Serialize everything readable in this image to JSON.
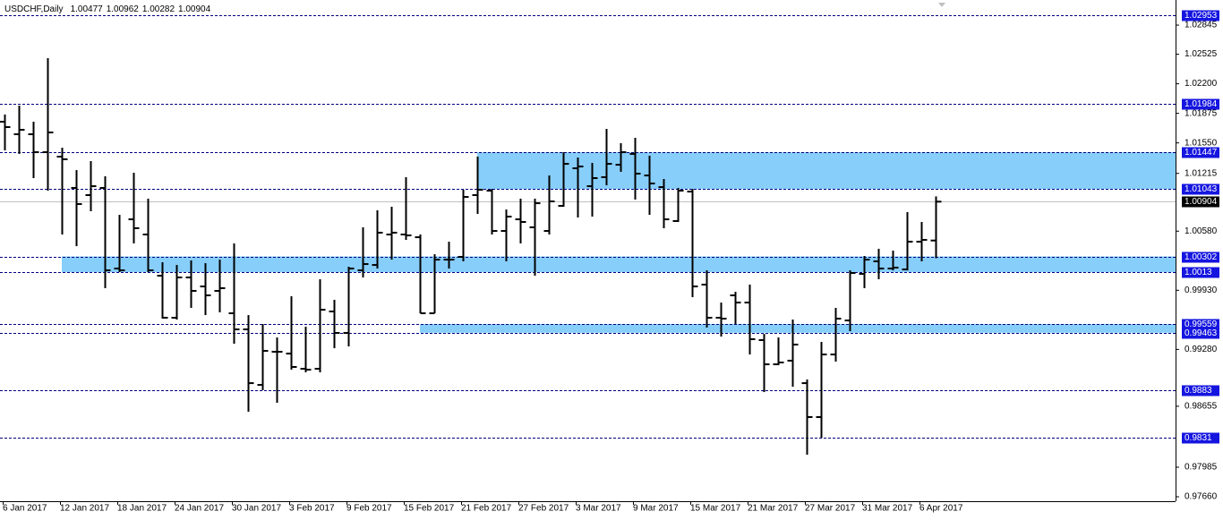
{
  "chart_data": {
    "type": "ohlc",
    "title": "USDCHF,Daily",
    "color": "#000000",
    "zone_color": "#87cefa",
    "level_color": "#1515e0",
    "level_line_color": "#000080",
    "current_color": "#000000",
    "categories": [
      "6 Jan 2017",
      null,
      null,
      null,
      "12 Jan 2017",
      null,
      null,
      null,
      "18 Jan 2017",
      null,
      null,
      null,
      "24 Jan 2017",
      null,
      null,
      null,
      "30 Jan 2017",
      null,
      null,
      null,
      "3 Feb 2017",
      null,
      null,
      null,
      "9 Feb 2017",
      null,
      null,
      null,
      "15 Feb 2017",
      null,
      null,
      null,
      "21 Feb 2017",
      null,
      null,
      null,
      "27 Feb 2017",
      null,
      null,
      null,
      "3 Mar 2017",
      null,
      null,
      null,
      "9 Mar 2017",
      null,
      null,
      null,
      "15 Mar 2017",
      null,
      null,
      null,
      "21 Mar 2017",
      null,
      null,
      null,
      "27 Mar 2017",
      null,
      null,
      null,
      "31 Mar 2017",
      null,
      null,
      null,
      "6 Apr 2017",
      null
    ],
    "open": [
      1.01783,
      1.01645,
      1.01645,
      1.01448,
      1.01399,
      1.01055,
      1.00976,
      1.01055,
      1.00169,
      1.0071,
      1.00543,
      1.0009,
      0.99628,
      1.00071,
      0.99972,
      0.99923,
      0.99677,
      0.995,
      0.9889,
      0.99254,
      0.99234,
      0.99067,
      0.99067,
      0.99697,
      0.99461,
      1.00149,
      1.00208,
      1.00543,
      1.00543,
      1.00513,
      0.99677,
      1.00267,
      1.00297,
      1.00976,
      1.01025,
      1.00582,
      1.0071,
      1.00622,
      1.00582,
      1.00858,
      1.01271,
      1.01074,
      1.01173,
      1.0131,
      1.01429,
      1.01192,
      1.01064,
      1.00691,
      1.01015,
      0.99992,
      0.99628,
      0.99874,
      0.99795,
      0.99382,
      0.99116,
      0.99156,
      0.98909,
      0.98536,
      0.99224,
      0.99598,
      1.0011,
      1.00248,
      1.00169,
      1.00159,
      1.00464,
      1.00477
    ],
    "high": [
      1.01862,
      1.0196,
      1.01783,
      1.02481,
      1.01497,
      1.01251,
      1.0135,
      1.01183,
      1.00759,
      1.01222,
      1.00937,
      1.00238,
      1.00208,
      1.00258,
      1.00228,
      1.00267,
      1.00445,
      0.99657,
      0.99559,
      0.99411,
      0.99864,
      0.99529,
      1.00051,
      0.99825,
      1.00189,
      1.00622,
      1.00809,
      1.00848,
      1.01173,
      1.00543,
      1.00326,
      1.00464,
      1.01035,
      1.01399,
      1.01045,
      1.00818,
      1.00937,
      1.00937,
      1.01192,
      1.01448,
      1.01389,
      1.0133,
      1.01704,
      1.01547,
      1.01606,
      1.01409,
      1.01153,
      1.01055,
      1.01045,
      1.00149,
      0.99795,
      0.99913,
      0.99992,
      0.99451,
      0.99411,
      0.99608,
      0.98949,
      0.99362,
      0.99736,
      1.00149,
      1.00307,
      1.00386,
      1.00366,
      1.00789,
      1.00681,
      1.00962
    ],
    "low": [
      1.01468,
      1.01429,
      1.01163,
      1.01025,
      1.00543,
      1.00415,
      1.00799,
      0.99953,
      1.0013,
      1.00445,
      1.0013,
      0.99618,
      0.99608,
      0.99736,
      0.99657,
      0.99687,
      0.99342,
      0.98595,
      0.98831,
      0.98693,
      0.99057,
      0.99028,
      0.99028,
      0.99293,
      0.99313,
      1.00071,
      1.00169,
      1.00267,
      1.00484,
      0.99677,
      0.99677,
      1.00169,
      1.00248,
      1.00769,
      1.00543,
      1.00248,
      1.00445,
      1.0009,
      1.00543,
      1.00848,
      1.0073,
      1.0074,
      1.01084,
      1.01232,
      1.00927,
      1.00759,
      1.00612,
      1.00681,
      0.99854,
      0.9952,
      0.99421,
      0.99559,
      0.99224,
      0.98811,
      0.99106,
      0.9887,
      0.98122,
      0.98309,
      0.99146,
      0.9948,
      0.99953,
      1.00051,
      1.00149,
      1.00149,
      1.00248,
      1.00282
    ],
    "close": [
      1.01724,
      1.01694,
      1.01448,
      1.01665,
      1.0137,
      1.00878,
      1.01074,
      1.00149,
      1.00149,
      1.00612,
      1.00149,
      0.99628,
      1.00071,
      0.99923,
      0.99874,
      0.99953,
      0.995,
      0.98909,
      0.99264,
      0.99254,
      0.99087,
      0.99057,
      0.99716,
      0.99461,
      1.00169,
      1.00218,
      1.00563,
      1.00563,
      1.00533,
      0.99677,
      1.00267,
      1.00267,
      1.00956,
      1.01035,
      1.00582,
      1.0074,
      1.00681,
      1.00887,
      1.00907,
      1.0132,
      1.01291,
      1.01163,
      1.0132,
      1.01448,
      1.01212,
      1.01104,
      1.0071,
      1.01025,
      0.99972,
      0.99628,
      0.99618,
      0.99795,
      0.99392,
      0.99116,
      0.99136,
      0.99333,
      0.98536,
      0.99224,
      0.99618,
      1.0012,
      1.00267,
      1.00169,
      1.00179,
      1.00464,
      1.00484,
      1.00904
    ],
    "levels": [
      1.02953,
      1.01984,
      1.01447,
      1.01043,
      1.00302,
      1.0013,
      0.99559,
      0.99463,
      0.9883,
      0.9831
    ],
    "ylim": [
      0.97611,
      1.03121
    ],
    "yticks": [
      1.02845,
      1.02525,
      {
        "value": 1.022,
        "label": "1.02200"
      },
      1.01875,
      {
        "value": 1.0155,
        "label": "1.01550"
      },
      1.01215,
      {
        "value": 1.0058,
        "label": "1.00580"
      },
      {
        "value": 0.9993,
        "label": "0.99930"
      },
      {
        "value": 0.9928,
        "label": "0.99280"
      },
      0.98655,
      0.97985,
      {
        "value": 0.9766,
        "label": "0.97660"
      }
    ]
  }
}
